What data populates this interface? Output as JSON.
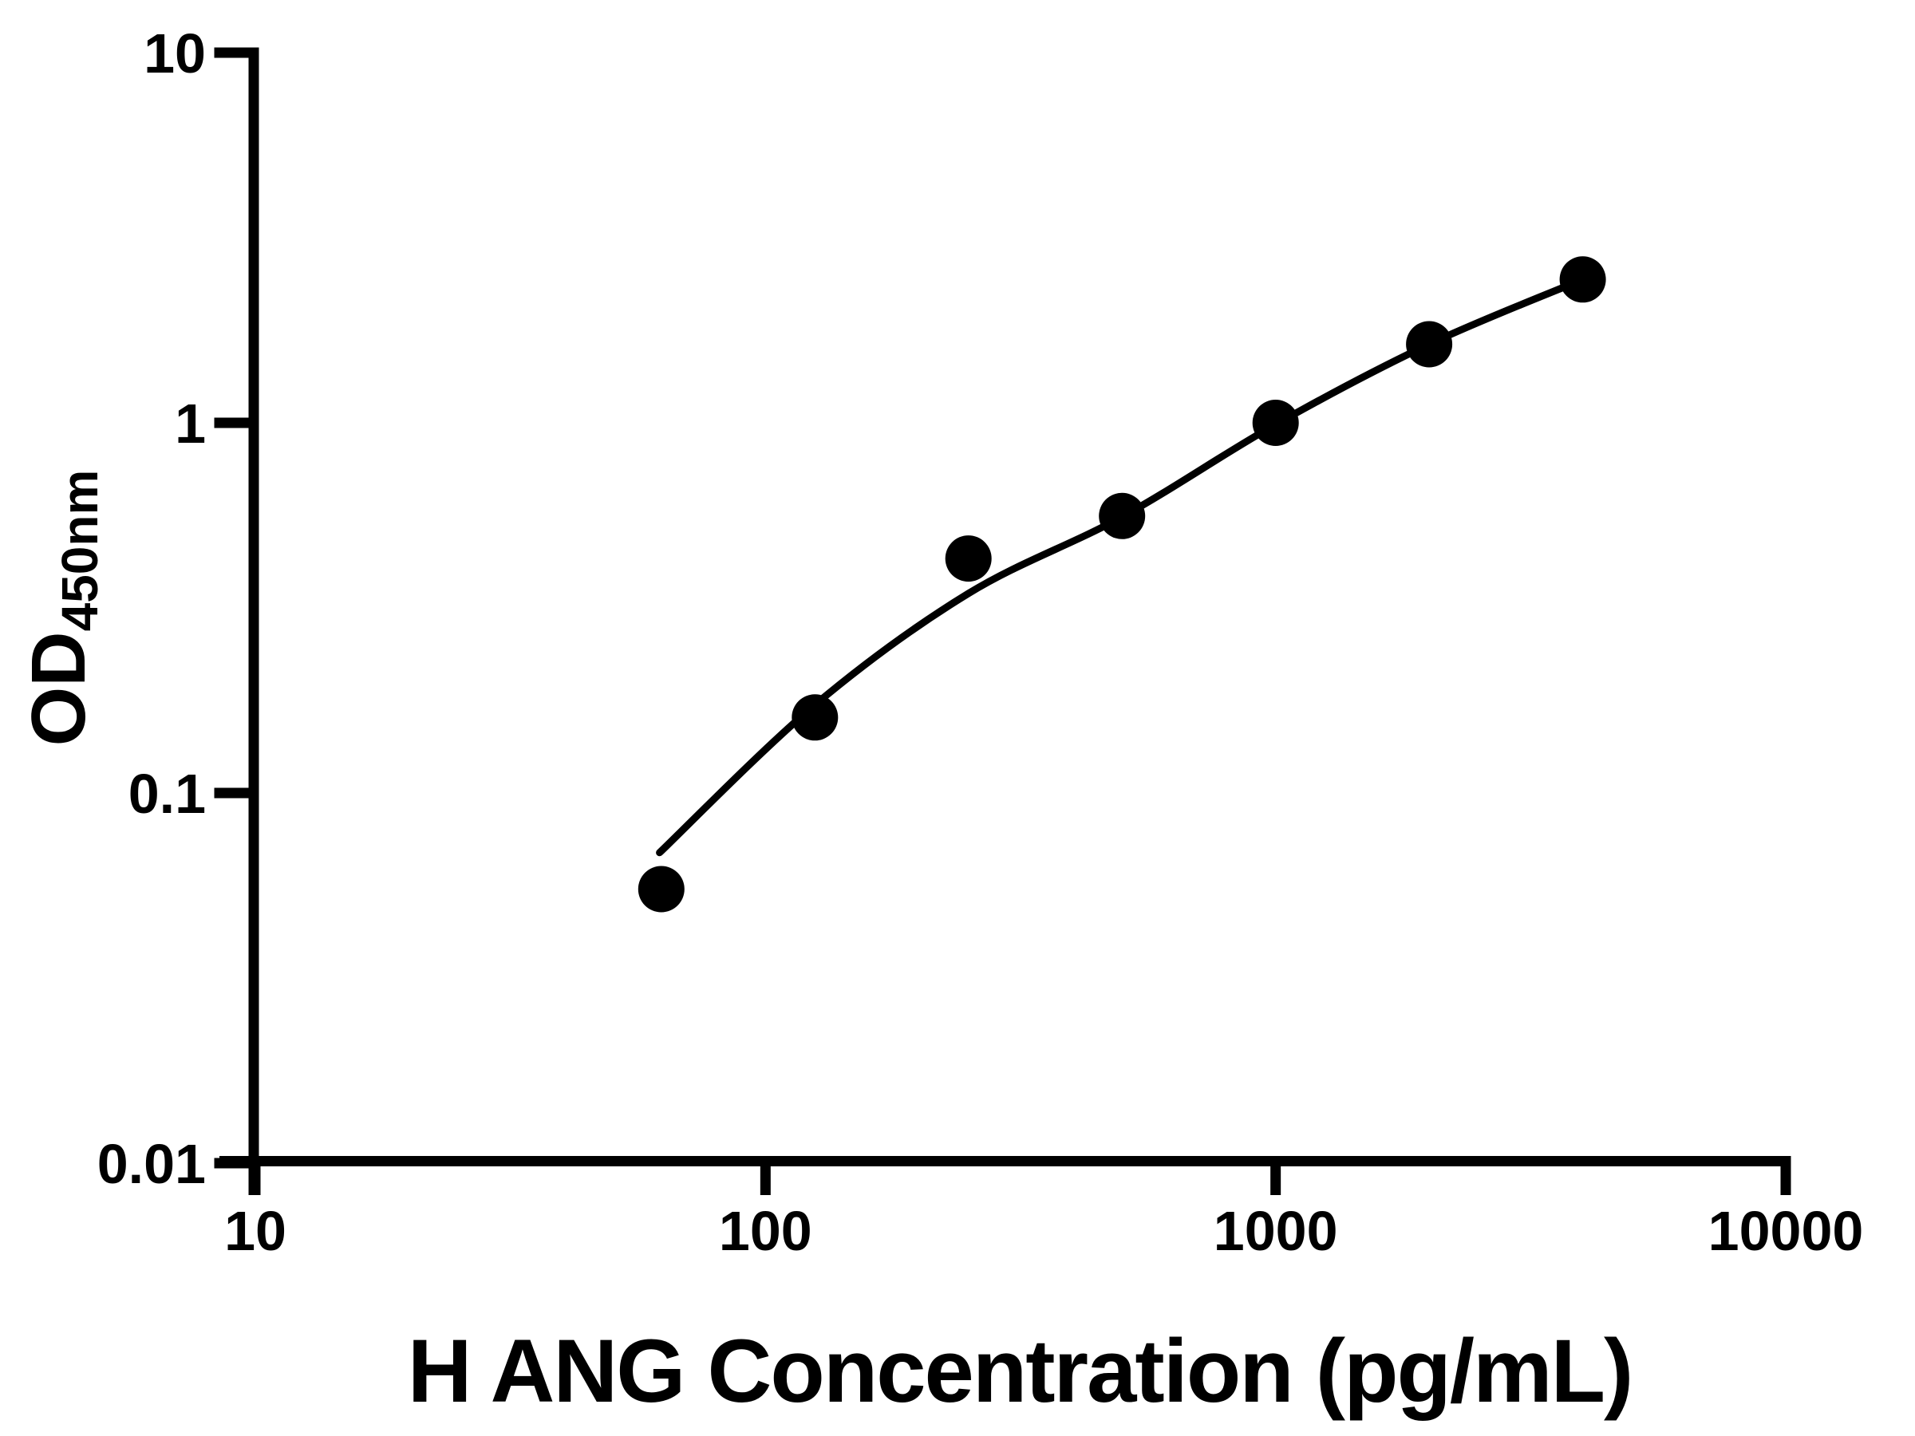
{
  "figure": {
    "background_color": "#ffffff",
    "ink_color": "#000000"
  },
  "chart_data": {
    "type": "scatter",
    "title": "",
    "xlabel": "H ANG Concentration (pg/mL)",
    "ylabel_main": "OD",
    "ylabel_subscript": "450nm",
    "x_scale": "log",
    "y_scale": "log",
    "xlim": [
      10,
      10000
    ],
    "ylim": [
      0.01,
      10
    ],
    "x_ticks": [
      10,
      100,
      1000,
      10000
    ],
    "x_tick_labels": [
      "10",
      "100",
      "1000",
      "10000"
    ],
    "y_ticks": [
      10,
      1,
      0.1,
      0.01
    ],
    "y_tick_labels": [
      "10",
      "1",
      "0.1",
      "0.01"
    ],
    "grid": false,
    "legend": false,
    "series": [
      {
        "name": "standard-points",
        "kind": "scatter",
        "marker": "filled-circle",
        "color": "#000000",
        "x": [
          62.5,
          125,
          250,
          500,
          1000,
          2000,
          4000
        ],
        "y": [
          0.055,
          0.16,
          0.43,
          0.56,
          1.0,
          1.63,
          2.44
        ]
      },
      {
        "name": "fit-curve",
        "kind": "line",
        "color": "#000000",
        "x": [
          62,
          125,
          250,
          500,
          1000,
          2000,
          4000
        ],
        "y": [
          0.069,
          0.173,
          0.346,
          0.557,
          0.99,
          1.63,
          2.44
        ]
      }
    ]
  }
}
